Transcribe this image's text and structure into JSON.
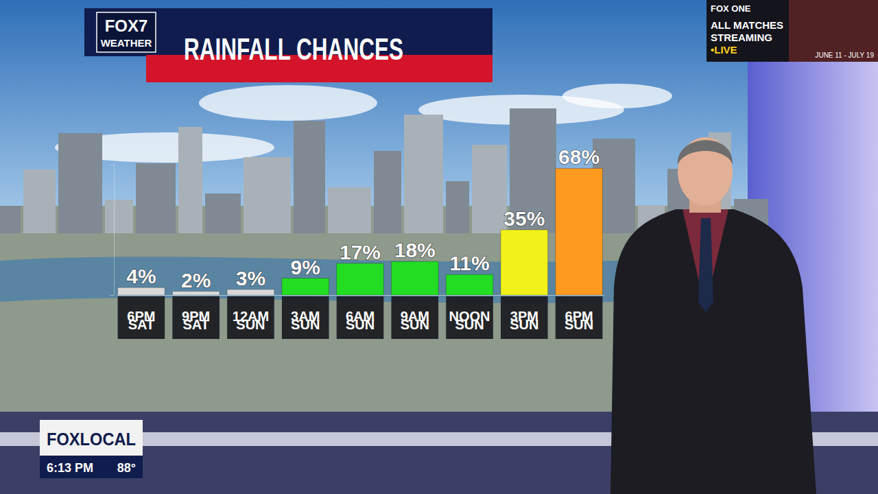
{
  "chart_data": {
    "type": "bar",
    "title": "RAINFALL CHANCES",
    "categories": [
      "6PM SAT",
      "9PM SAT",
      "12AM SUN",
      "3AM SUN",
      "6AM SUN",
      "9AM SUN",
      "NOON SUN",
      "3PM SUN",
      "6PM SUN"
    ],
    "values": [
      4,
      2,
      3,
      9,
      17,
      18,
      11,
      35,
      68
    ],
    "value_labels": [
      "4%",
      "2%",
      "3%",
      "9%",
      "17%",
      "18%",
      "11%",
      "35%",
      "68%"
    ],
    "colors": [
      "#d9d9d9",
      "#d9d9d9",
      "#d9d9d9",
      "#22dd22",
      "#22dd22",
      "#22dd22",
      "#22dd22",
      "#f2f21a",
      "#ff9a1f"
    ],
    "ylim": [
      0,
      70
    ],
    "yticks": [],
    "tick_labels": "x",
    "data_labels": true,
    "grid": false
  },
  "branding": {
    "logo_top": "FOX7",
    "logo_bottom": "WEATHER"
  },
  "bug": {
    "network": "FOXLOCAL",
    "time": "6:13 PM",
    "temperature": "88°"
  },
  "promo": {
    "brand": "FOX ONE",
    "line1": "ALL MATCHES",
    "line2": "STREAMING",
    "live": "•LIVE",
    "dates": "JUNE 11 - JULY 19"
  }
}
